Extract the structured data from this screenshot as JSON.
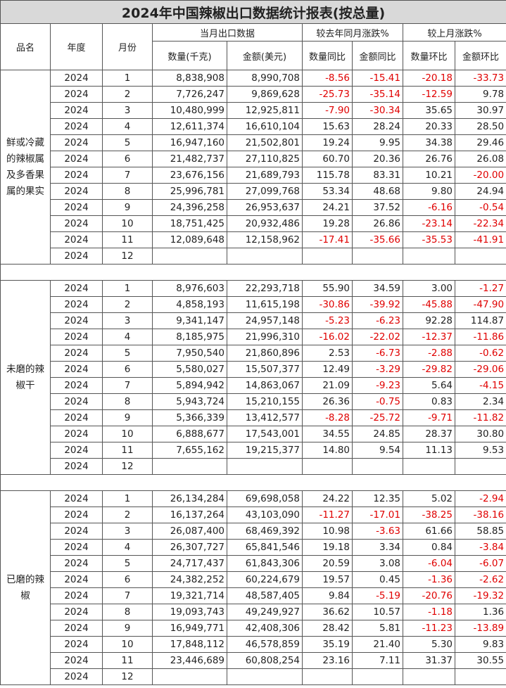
{
  "title": "2024年中国辣椒出口数据统计报表(按总量)",
  "headers": {
    "product": "品名",
    "year": "年度",
    "month": "月份",
    "current_group": "当月出口数据",
    "yoy_group": "较去年同月涨跌%",
    "mom_group": "较上月涨跌%",
    "qty": "数量(千克)",
    "amount": "金额(美元)",
    "qty_yoy": "数量同比",
    "amount_yoy": "金额同比",
    "qty_mom": "数量环比",
    "amount_mom": "金额环比"
  },
  "sections": [
    {
      "name": "鲜或冷藏的辣椒属及多香果属的果实",
      "rows": [
        [
          "2024",
          "1",
          "8,838,908",
          "8,990,708",
          "-8.56",
          "-15.41",
          "-20.18",
          "-33.73"
        ],
        [
          "2024",
          "2",
          "7,726,247",
          "9,869,628",
          "-25.73",
          "-35.14",
          "-12.59",
          "9.78"
        ],
        [
          "2024",
          "3",
          "10,480,999",
          "12,925,811",
          "-7.90",
          "-30.34",
          "35.65",
          "30.97"
        ],
        [
          "2024",
          "4",
          "12,611,374",
          "16,610,104",
          "15.63",
          "28.24",
          "20.33",
          "28.50"
        ],
        [
          "2024",
          "5",
          "16,947,160",
          "21,502,801",
          "19.24",
          "9.95",
          "34.38",
          "29.46"
        ],
        [
          "2024",
          "6",
          "21,482,737",
          "27,110,825",
          "60.70",
          "20.36",
          "26.76",
          "26.08"
        ],
        [
          "2024",
          "7",
          "23,676,156",
          "21,689,793",
          "115.78",
          "83.31",
          "10.21",
          "-20.00"
        ],
        [
          "2024",
          "8",
          "25,996,781",
          "27,099,768",
          "53.34",
          "48.68",
          "9.80",
          "24.94"
        ],
        [
          "2024",
          "9",
          "24,396,258",
          "26,953,637",
          "24.21",
          "37.52",
          "-6.16",
          "-0.54"
        ],
        [
          "2024",
          "10",
          "18,751,425",
          "20,932,486",
          "19.28",
          "26.86",
          "-23.14",
          "-22.34"
        ],
        [
          "2024",
          "11",
          "12,089,648",
          "12,158,962",
          "-17.41",
          "-35.66",
          "-35.53",
          "-41.91"
        ],
        [
          "2024",
          "12",
          "",
          "",
          "",
          "",
          "",
          ""
        ]
      ]
    },
    {
      "name": "未磨的辣椒干",
      "rows": [
        [
          "2024",
          "1",
          "8,976,603",
          "22,293,718",
          "55.90",
          "34.59",
          "3.00",
          "-1.27"
        ],
        [
          "2024",
          "2",
          "4,858,193",
          "11,615,198",
          "-30.86",
          "-39.92",
          "-45.88",
          "-47.90"
        ],
        [
          "2024",
          "3",
          "9,341,147",
          "24,957,148",
          "-5.23",
          "-6.23",
          "92.28",
          "114.87"
        ],
        [
          "2024",
          "4",
          "8,185,975",
          "21,996,310",
          "-16.02",
          "-22.02",
          "-12.37",
          "-11.86"
        ],
        [
          "2024",
          "5",
          "7,950,540",
          "21,860,896",
          "2.53",
          "-6.73",
          "-2.88",
          "-0.62"
        ],
        [
          "2024",
          "6",
          "5,580,027",
          "15,507,377",
          "12.49",
          "-3.29",
          "-29.82",
          "-29.06"
        ],
        [
          "2024",
          "7",
          "5,894,942",
          "14,863,067",
          "21.09",
          "-9.23",
          "5.64",
          "-4.15"
        ],
        [
          "2024",
          "8",
          "5,943,724",
          "15,210,155",
          "26.36",
          "-0.75",
          "0.83",
          "2.34"
        ],
        [
          "2024",
          "9",
          "5,366,339",
          "13,412,577",
          "-8.28",
          "-25.72",
          "-9.71",
          "-11.82"
        ],
        [
          "2024",
          "10",
          "6,888,677",
          "17,543,001",
          "34.55",
          "24.85",
          "28.37",
          "30.80"
        ],
        [
          "2024",
          "11",
          "7,655,162",
          "19,215,377",
          "14.80",
          "9.54",
          "11.13",
          "9.53"
        ],
        [
          "2024",
          "12",
          "",
          "",
          "",
          "",
          "",
          ""
        ]
      ]
    },
    {
      "name": "已磨的辣椒",
      "rows": [
        [
          "2024",
          "1",
          "26,134,284",
          "69,698,058",
          "24.22",
          "12.35",
          "5.02",
          "-2.94"
        ],
        [
          "2024",
          "2",
          "16,137,264",
          "43,103,090",
          "-11.27",
          "-17.01",
          "-38.25",
          "-38.16"
        ],
        [
          "2024",
          "3",
          "26,087,400",
          "68,469,392",
          "10.98",
          "-3.63",
          "61.66",
          "58.85"
        ],
        [
          "2024",
          "4",
          "26,307,727",
          "65,841,546",
          "19.18",
          "3.34",
          "0.84",
          "-3.84"
        ],
        [
          "2024",
          "5",
          "24,717,437",
          "61,843,306",
          "20.59",
          "3.08",
          "-6.04",
          "-6.07"
        ],
        [
          "2024",
          "6",
          "24,382,252",
          "60,224,679",
          "19.57",
          "0.45",
          "-1.36",
          "-2.62"
        ],
        [
          "2024",
          "7",
          "19,321,714",
          "48,587,405",
          "9.84",
          "-5.19",
          "-20.76",
          "-19.32"
        ],
        [
          "2024",
          "8",
          "19,093,743",
          "49,249,927",
          "36.62",
          "10.57",
          "-1.18",
          "1.36"
        ],
        [
          "2024",
          "9",
          "16,949,771",
          "42,408,306",
          "28.42",
          "5.81",
          "-11.23",
          "-13.89"
        ],
        [
          "2024",
          "10",
          "17,848,112",
          "46,578,859",
          "35.19",
          "21.40",
          "5.30",
          "9.83"
        ],
        [
          "2024",
          "11",
          "23,446,689",
          "60,808,254",
          "23.16",
          "7.11",
          "31.37",
          "30.55"
        ],
        [
          "2024",
          "12",
          "",
          "",
          "",
          "",
          "",
          ""
        ]
      ]
    }
  ]
}
